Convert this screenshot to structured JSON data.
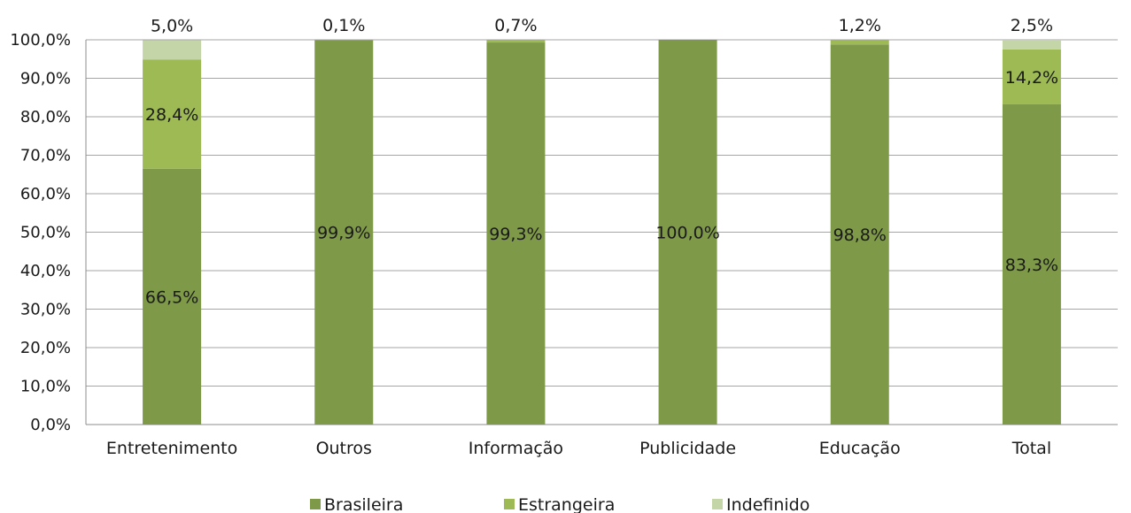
{
  "chart_data": {
    "type": "bar",
    "stacked": true,
    "categories": [
      "Entretenimento",
      "Outros",
      "Informação",
      "Publicidade",
      "Educação",
      "Total"
    ],
    "series": [
      {
        "name": "Brasileira",
        "color": "#7e9a48",
        "values": [
          66.5,
          99.9,
          99.3,
          100.0,
          98.8,
          83.3
        ],
        "labels": [
          "66,5%",
          "99,9%",
          "99,3%",
          "100,0%",
          "98,8%",
          "83,3%"
        ]
      },
      {
        "name": "Estrangeira",
        "color": "#9dba55",
        "values": [
          28.4,
          0.1,
          0.7,
          0.0,
          1.2,
          14.2
        ],
        "labels": [
          "28,4%",
          "0,1%",
          "0,7%",
          "",
          "1,2%",
          "14,2%"
        ]
      },
      {
        "name": "Indefinido",
        "color": "#c4d5a8",
        "values": [
          5.0,
          0.0,
          0.0,
          0.0,
          0.0,
          2.5
        ],
        "labels": [
          "5,0%",
          "",
          "",
          "",
          "",
          "2,5%"
        ]
      }
    ],
    "ylim": [
      0,
      100
    ],
    "yticks": [
      "0,0%",
      "10,0%",
      "20,0%",
      "30,0%",
      "40,0%",
      "50,0%",
      "60,0%",
      "70,0%",
      "80,0%",
      "90,0%",
      "100,0%"
    ],
    "grid": true,
    "legend_position": "bottom"
  }
}
